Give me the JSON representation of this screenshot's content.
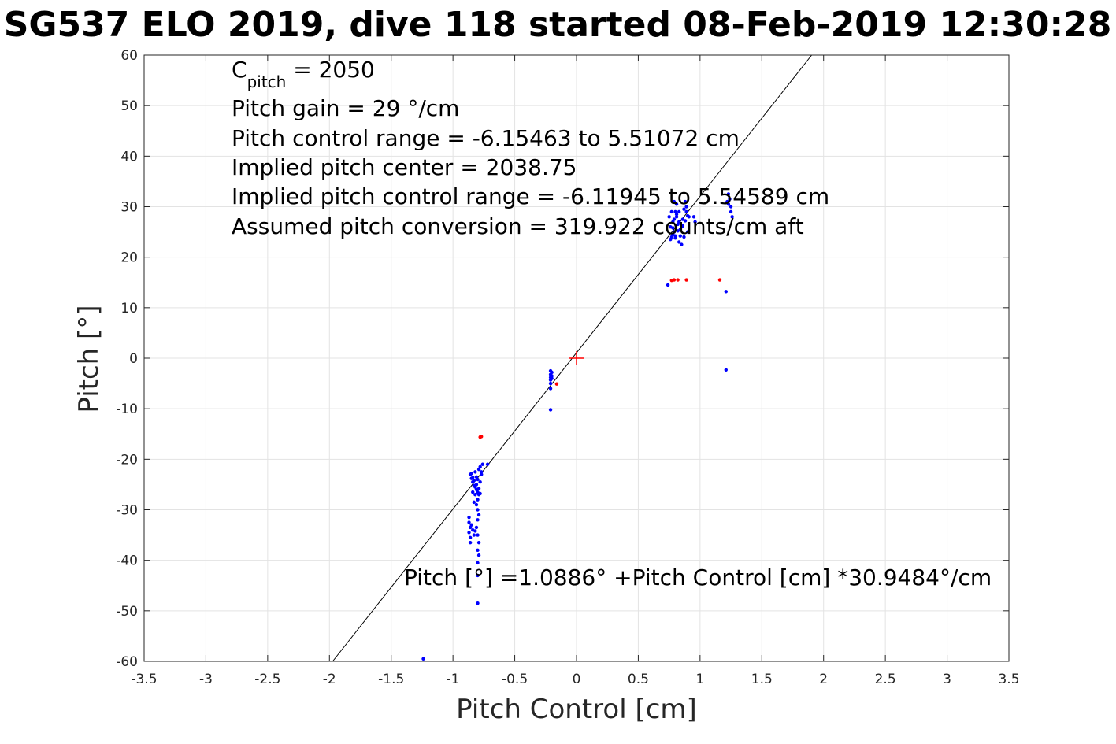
{
  "chart_data": {
    "type": "scatter",
    "title": "SG537 ELO 2019, dive 118 started 08-Feb-2019 12:30:28",
    "xlabel": "Pitch Control [cm]",
    "ylabel": "Pitch [°]",
    "xlim": [
      -3.5,
      3.5
    ],
    "ylim": [
      -60,
      60
    ],
    "xticks": [
      -3.5,
      -3,
      -2.5,
      -2,
      -1.5,
      -1,
      -0.5,
      0,
      0.5,
      1,
      1.5,
      2,
      2.5,
      3,
      3.5
    ],
    "xtick_labels": [
      "-3.5",
      "-3",
      "-2.5",
      "-2",
      "-1.5",
      "-1",
      "-0.5",
      "0",
      "0.5",
      "1",
      "1.5",
      "2",
      "2.5",
      "3",
      "3.5"
    ],
    "yticks": [
      -60,
      -50,
      -40,
      -30,
      -20,
      -10,
      0,
      10,
      20,
      30,
      40,
      50,
      60
    ],
    "ytick_labels": [
      "-60",
      "-50",
      "-40",
      "-30",
      "-20",
      "-10",
      "0",
      "10",
      "20",
      "30",
      "40",
      "50",
      "60"
    ],
    "grid": true,
    "annotations": {
      "cpitch_base": "C",
      "cpitch_sub": "pitch",
      "cpitch_value": " = 2050",
      "lines": [
        "Pitch gain = 29 °/cm",
        "Pitch control range = -6.15463 to 5.51072 cm",
        "Implied pitch center = 2038.75",
        "Implied pitch control range = -6.11945 to 5.54589 cm",
        "Assumed pitch conversion = 319.922 counts/cm aft"
      ],
      "fit_equation": "Pitch [°] =1.0886° +Pitch Control [cm] *30.9484°/cm"
    },
    "fit_line": {
      "intercept": 1.0886,
      "slope": 30.9484,
      "color": "#000000"
    },
    "center_marker": {
      "x": 0,
      "y": 0,
      "color": "#ff0000"
    },
    "series": [
      {
        "color": "#0000ff",
        "points": [
          [
            -0.86,
            -23
          ],
          [
            -0.85,
            -23.8
          ],
          [
            -0.84,
            -24.5
          ],
          [
            -0.83,
            -25.2
          ],
          [
            -0.82,
            -22.5
          ],
          [
            -0.81,
            -23.5
          ],
          [
            -0.8,
            -24
          ],
          [
            -0.79,
            -22
          ],
          [
            -0.78,
            -21.5
          ],
          [
            -0.77,
            -23
          ],
          [
            -0.85,
            -22.8
          ],
          [
            -0.84,
            -23.6
          ],
          [
            -0.83,
            -24.2
          ],
          [
            -0.82,
            -25.5
          ],
          [
            -0.81,
            -26
          ],
          [
            -0.8,
            -26.5
          ],
          [
            -0.79,
            -27
          ],
          [
            -0.8,
            -28
          ],
          [
            -0.81,
            -29
          ],
          [
            -0.8,
            -30
          ],
          [
            -0.79,
            -31
          ],
          [
            -0.8,
            -32
          ],
          [
            -0.81,
            -33.5
          ],
          [
            -0.8,
            -35
          ],
          [
            -0.79,
            -36.5
          ],
          [
            -0.8,
            -38
          ],
          [
            -0.79,
            -39
          ],
          [
            -0.8,
            -40.5
          ],
          [
            -0.8,
            -43
          ],
          [
            -0.8,
            -48.5
          ],
          [
            -0.87,
            -31.5
          ],
          [
            -0.87,
            -32.5
          ],
          [
            -0.86,
            -33.5
          ],
          [
            -0.87,
            -34.5
          ],
          [
            -0.86,
            -35.5
          ],
          [
            -0.86,
            -36.5
          ],
          [
            -0.85,
            -33
          ],
          [
            -0.84,
            -34
          ],
          [
            -0.83,
            -35
          ],
          [
            -0.82,
            -34.2
          ],
          [
            -0.81,
            -25
          ],
          [
            -0.82,
            -27
          ],
          [
            -0.83,
            -28.5
          ],
          [
            -0.84,
            -26.5
          ],
          [
            -0.78,
            -24.5
          ],
          [
            -0.77,
            -22.5
          ],
          [
            -0.76,
            -21
          ],
          [
            -0.72,
            -21
          ],
          [
            -0.79,
            -25.8
          ],
          [
            -0.78,
            -26.8
          ],
          [
            -0.21,
            -2.5
          ],
          [
            -0.21,
            -3.2
          ],
          [
            -0.21,
            -3.8
          ],
          [
            -0.21,
            -4.3
          ],
          [
            -0.21,
            -5
          ],
          [
            -0.2,
            -2.8
          ],
          [
            -0.2,
            -3.5
          ],
          [
            -0.2,
            -4
          ],
          [
            -0.21,
            -6
          ],
          [
            -0.21,
            -10.2
          ],
          [
            0.75,
            28
          ],
          [
            0.76,
            26
          ],
          [
            0.77,
            24
          ],
          [
            0.78,
            27
          ],
          [
            0.79,
            25
          ],
          [
            0.8,
            29
          ],
          [
            0.81,
            30.5
          ],
          [
            0.82,
            26.5
          ],
          [
            0.83,
            23
          ],
          [
            0.84,
            25.5
          ],
          [
            0.85,
            22.5
          ],
          [
            0.86,
            27.5
          ],
          [
            0.87,
            24
          ],
          [
            0.88,
            31
          ],
          [
            0.89,
            29
          ],
          [
            0.9,
            25
          ],
          [
            0.91,
            28
          ],
          [
            0.95,
            28
          ],
          [
            0.96,
            27
          ],
          [
            0.8,
            23.8
          ],
          [
            0.78,
            24.5
          ],
          [
            0.76,
            23.5
          ],
          [
            0.77,
            29
          ],
          [
            0.79,
            27.5
          ],
          [
            0.81,
            28.5
          ],
          [
            0.83,
            27
          ],
          [
            0.85,
            26
          ],
          [
            0.87,
            29.5
          ],
          [
            0.89,
            30
          ],
          [
            0.78,
            25.8
          ],
          [
            0.74,
            14.5
          ],
          [
            0.8,
            24.2
          ],
          [
            0.82,
            25.2
          ],
          [
            0.84,
            24.2
          ],
          [
            0.86,
            26.2
          ],
          [
            0.88,
            27.2
          ],
          [
            0.9,
            28.2
          ],
          [
            0.79,
            31
          ],
          [
            0.81,
            28
          ],
          [
            0.83,
            29
          ],
          [
            1.23,
            32.5
          ],
          [
            1.24,
            31.5
          ],
          [
            1.25,
            30
          ],
          [
            1.25,
            29
          ],
          [
            1.26,
            28
          ],
          [
            1.22,
            31
          ],
          [
            1.23,
            30.5
          ],
          [
            1.21,
            13.2
          ],
          [
            1.21,
            -2.3
          ],
          [
            -1.24,
            -59.5
          ]
        ]
      },
      {
        "color": "#ff0000",
        "points": [
          [
            -0.77,
            -15.5
          ],
          [
            -0.78,
            -15.6
          ],
          [
            -0.16,
            -5.1
          ],
          [
            0.77,
            15.4
          ],
          [
            0.79,
            15.5
          ],
          [
            0.82,
            15.5
          ],
          [
            0.89,
            15.5
          ],
          [
            1.16,
            15.5
          ]
        ]
      }
    ]
  }
}
